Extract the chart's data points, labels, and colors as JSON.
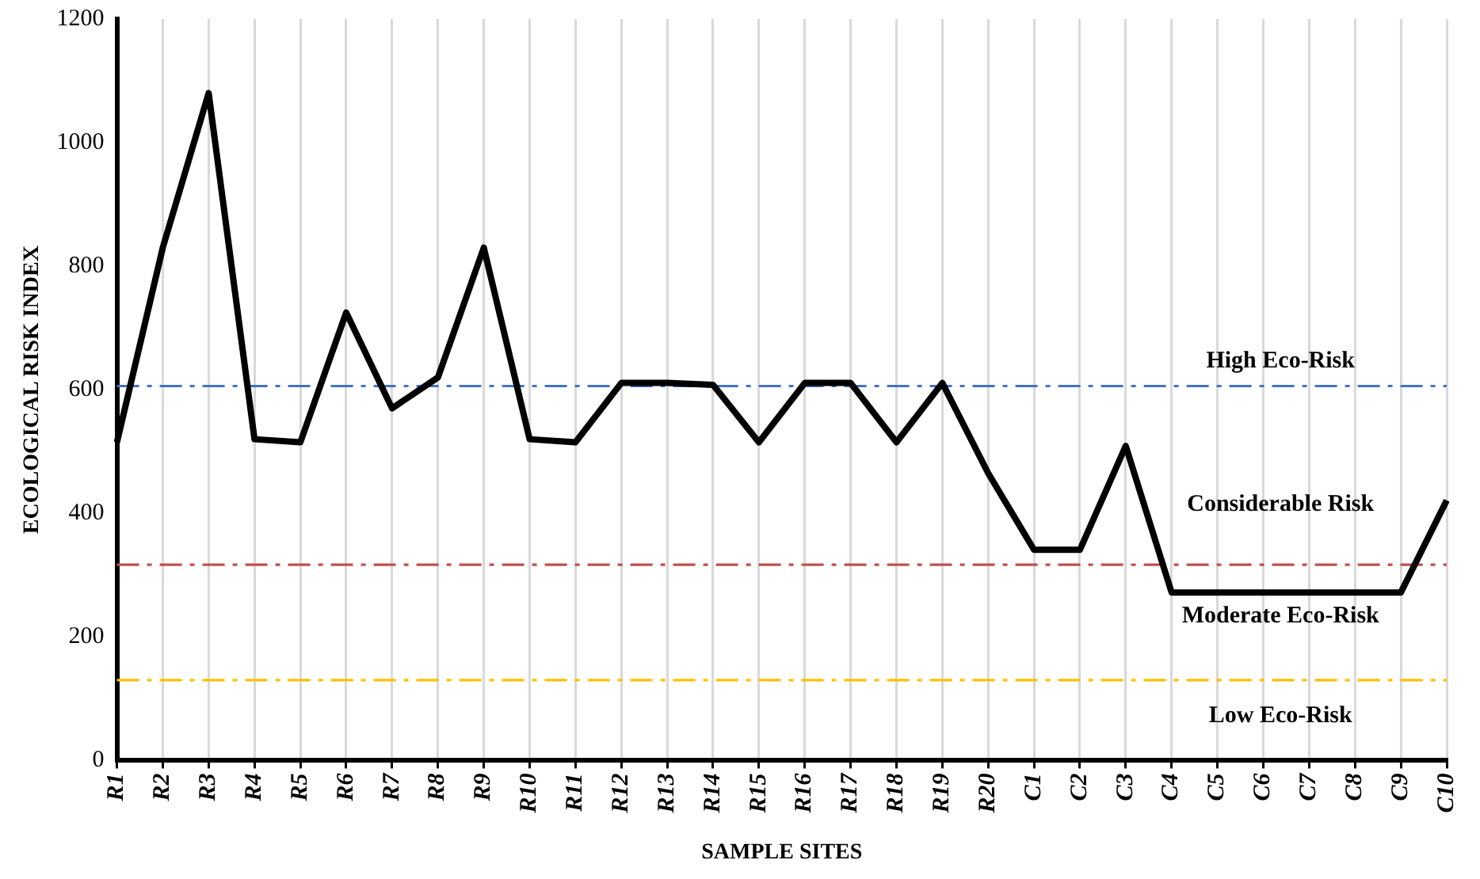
{
  "chart_data": {
    "type": "line",
    "xlabel": "SAMPLE SITES",
    "ylabel": "ECOLOGICAL RISK INDEX",
    "categories": [
      "R1",
      "R2",
      "R3",
      "R4",
      "R5",
      "R6",
      "R7",
      "R8",
      "R9",
      "R10",
      "R11",
      "R12",
      "R13",
      "R14",
      "R15",
      "R16",
      "R17",
      "R18",
      "R19",
      "R20",
      "C1",
      "C2",
      "C3",
      "C4",
      "C5",
      "C6",
      "C7",
      "C8",
      "C9",
      "C10"
    ],
    "series": [
      {
        "color": "#000000",
        "values": [
          515,
          830,
          1080,
          520,
          515,
          725,
          570,
          620,
          830,
          520,
          515,
          611,
          611,
          608,
          515,
          611,
          611,
          515,
          611,
          465,
          341,
          341,
          509,
          272,
          272,
          272,
          272,
          272,
          272,
          421
        ]
      }
    ],
    "ylim": [
      0,
      1200
    ],
    "yticks": [
      0,
      200,
      400,
      600,
      800,
      1000,
      1200
    ],
    "grid": "x",
    "legend": false,
    "marker": "none",
    "line_style": "solid",
    "ref_lines": [
      {
        "axis": "y",
        "value": 606,
        "color": "#4472c4",
        "line_style": "dashed",
        "label": "High Eco-Risk"
      },
      {
        "axis": "y",
        "value": 317,
        "color": "#c0504d",
        "line_style": "dashed"
      },
      {
        "axis": "y",
        "value": 130,
        "color": "#ffc000",
        "line_style": "dashed"
      }
    ],
    "annotations": [
      "Considerable Risk",
      "Moderate Eco-Risk",
      "Low Eco-Risk"
    ]
  }
}
